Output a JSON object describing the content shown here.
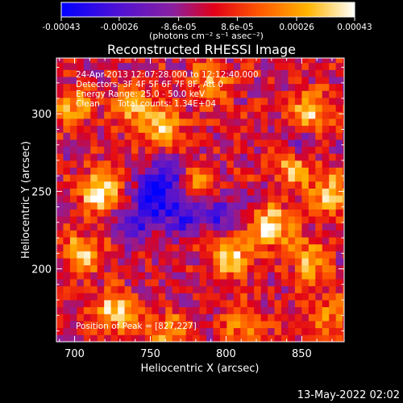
{
  "chart_data": {
    "type": "heatmap",
    "title": "Reconstructed RHESSI Image",
    "xlabel": "Heliocentric X (arcsec)",
    "ylabel": "Heliocentric Y (arcsec)",
    "xlim": [
      688,
      878
    ],
    "ylim": [
      153,
      336
    ],
    "x_ticks": [
      "700",
      "750",
      "800",
      "850"
    ],
    "x_tick_values": [
      700,
      750,
      800,
      850
    ],
    "y_ticks": [
      "200",
      "250",
      "300"
    ],
    "y_tick_values": [
      200,
      250,
      300
    ],
    "colorbar": {
      "tick_labels": [
        "-0.00043",
        "-0.00026",
        "-8.6e-05",
        "8.6e-05",
        "0.00026",
        "0.00043"
      ],
      "tick_values": [
        -0.00043,
        -0.00026,
        -8.6e-05,
        8.6e-05,
        0.00026,
        0.00043
      ],
      "range": [
        -0.00043,
        0.00043
      ],
      "units": "(photons cm⁻² s⁻¹ asec⁻²)",
      "colormap": "rhessi (blue → purple → red → orange → yellow → white)"
    },
    "annotations": {
      "time_range": "24-Apr-2013 12:07:28.000 to 12:12:40.000",
      "detectors": "Detectors: 3F 4F 5F 6F 7F 8F, Att 0",
      "energy_range": "Energy Range: 25.0 - 50.0 keV",
      "method": "Clean",
      "total_counts": "Total counts: 1.34E+04",
      "peak": "Position of Peak = [827,227]"
    },
    "bright_regions": [
      {
        "x": 717,
        "y": 250,
        "level": 1.0
      },
      {
        "x": 727,
        "y": 172,
        "level": 0.9
      },
      {
        "x": 830,
        "y": 227,
        "level": 1.0
      },
      {
        "x": 855,
        "y": 300,
        "level": 0.95
      },
      {
        "x": 803,
        "y": 208,
        "level": 0.85
      },
      {
        "x": 700,
        "y": 305,
        "level": 0.6
      },
      {
        "x": 760,
        "y": 290,
        "level": 0.7
      },
      {
        "x": 870,
        "y": 248,
        "level": 0.8
      },
      {
        "x": 740,
        "y": 305,
        "level": 0.75
      },
      {
        "x": 845,
        "y": 265,
        "level": 0.7
      },
      {
        "x": 780,
        "y": 255,
        "level": 0.6
      },
      {
        "x": 705,
        "y": 210,
        "level": 0.7
      },
      {
        "x": 855,
        "y": 205,
        "level": 0.7
      },
      {
        "x": 790,
        "y": 320,
        "level": 0.55
      },
      {
        "x": 870,
        "y": 170,
        "level": 0.5
      },
      {
        "x": 760,
        "y": 160,
        "level": 0.6
      },
      {
        "x": 810,
        "y": 165,
        "level": 0.5
      }
    ],
    "dim_regions": [
      {
        "x": 753,
        "y": 248,
        "level": -0.9
      },
      {
        "x": 770,
        "y": 235,
        "level": -0.7
      },
      {
        "x": 795,
        "y": 235,
        "level": -0.6
      },
      {
        "x": 740,
        "y": 230,
        "level": -0.6
      },
      {
        "x": 763,
        "y": 262,
        "level": -0.5
      },
      {
        "x": 850,
        "y": 285,
        "level": -0.5
      }
    ]
  },
  "footer": {
    "date": "13-May-2022 02:02"
  }
}
